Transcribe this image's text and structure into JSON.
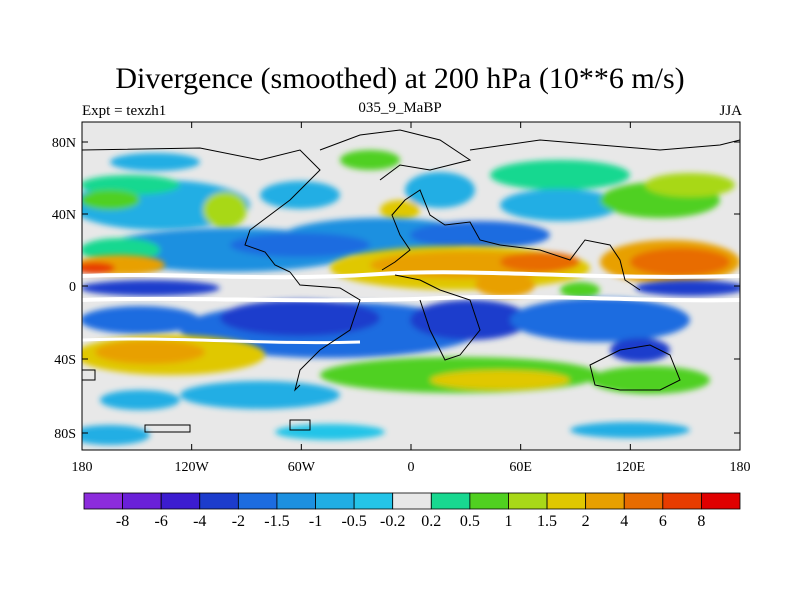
{
  "title": "Divergence (smoothed) at 200 hPa (10**6 m/s)",
  "subtitle_left": "Expt = texzh1",
  "subtitle_center": "035_9_MaBP",
  "subtitle_right": "JJA",
  "y_ticks": [
    "80N",
    "40N",
    "0",
    "40S",
    "80S"
  ],
  "x_ticks": [
    "180",
    "120W",
    "60W",
    "0",
    "60E",
    "120E",
    "180"
  ],
  "colorbar": {
    "labels": [
      "-8",
      "-6",
      "-4",
      "-2",
      "-1.5",
      "-1",
      "-0.5",
      "-0.2",
      "0.2",
      "0.5",
      "1",
      "1.5",
      "2",
      "4",
      "6",
      "8"
    ],
    "colors": [
      "#8c2cdc",
      "#6a20d8",
      "#3c1cd0",
      "#1c3ccc",
      "#1c6ce0",
      "#1c90e0",
      "#20aee4",
      "#24c4e8",
      "#e8e8e8",
      "#18d890",
      "#50d020",
      "#a8d818",
      "#e0c800",
      "#e8a000",
      "#e86c00",
      "#e83c00",
      "#e00000"
    ]
  }
}
